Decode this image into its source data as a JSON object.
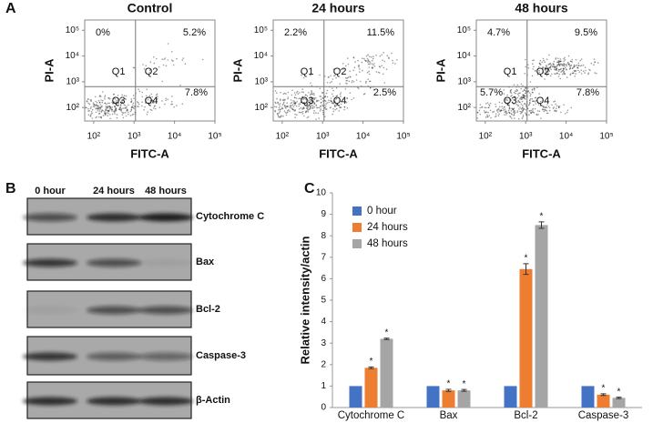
{
  "panel_labels": [
    "A",
    "B",
    "C"
  ],
  "chart_data": [
    {
      "type": "scatter",
      "title": "Control",
      "xlabel": "FITC-A",
      "ylabel": "PI-A",
      "xscale": "log",
      "yscale": "log",
      "xlim": [
        60,
        100000
      ],
      "ylim": [
        30,
        250000
      ],
      "xticks": [
        {
          "value": 100,
          "label": "10²"
        },
        {
          "value": 1000,
          "label": "10³"
        },
        {
          "value": 10000,
          "label": "10⁴"
        },
        {
          "value": 100000,
          "label": "10⁵"
        }
      ],
      "yticks": [
        {
          "value": 100,
          "label": "10²"
        },
        {
          "value": 1000,
          "label": "10³"
        },
        {
          "value": 10000,
          "label": "10⁴"
        },
        {
          "value": 100000,
          "label": "10⁵"
        }
      ],
      "quadrants": [
        "Q1",
        "Q2",
        "Q3",
        "Q4"
      ],
      "values": [
        0,
        5.2,
        null,
        7.8
      ],
      "value_labels": [
        "0%",
        "5.2%",
        null,
        "7.8%"
      ]
    },
    {
      "type": "scatter",
      "title": "24 hours",
      "xlabel": "FITC-A",
      "ylabel": "PI-A",
      "xscale": "log",
      "yscale": "log",
      "xlim": [
        60,
        100000
      ],
      "ylim": [
        30,
        250000
      ],
      "xticks": [
        {
          "value": 100,
          "label": "10²"
        },
        {
          "value": 1000,
          "label": "10³"
        },
        {
          "value": 10000,
          "label": "10⁴"
        },
        {
          "value": 100000,
          "label": "10⁵"
        }
      ],
      "yticks": [
        {
          "value": 100,
          "label": "10²"
        },
        {
          "value": 1000,
          "label": "10³"
        },
        {
          "value": 10000,
          "label": "10⁴"
        },
        {
          "value": 100000,
          "label": "10⁵"
        }
      ],
      "quadrants": [
        "Q1",
        "Q2",
        "Q3",
        "Q4"
      ],
      "values": [
        2.2,
        11.5,
        null,
        2.5
      ],
      "value_labels": [
        "2.2%",
        "11.5%",
        null,
        "2.5%"
      ]
    },
    {
      "type": "scatter",
      "title": "48 hours",
      "xlabel": "FITC-A",
      "ylabel": "PI-A",
      "xscale": "log",
      "yscale": "log",
      "xlim": [
        60,
        100000
      ],
      "ylim": [
        30,
        250000
      ],
      "xticks": [
        {
          "value": 100,
          "label": "10²"
        },
        {
          "value": 1000,
          "label": "10³"
        },
        {
          "value": 10000,
          "label": "10⁴"
        },
        {
          "value": 100000,
          "label": "10⁵"
        }
      ],
      "yticks": [
        {
          "value": 100,
          "label": "10²"
        },
        {
          "value": 1000,
          "label": "10³"
        },
        {
          "value": 10000,
          "label": "10⁴"
        },
        {
          "value": 100000,
          "label": "10⁵"
        }
      ],
      "quadrants": [
        "Q1",
        "Q2",
        "Q3",
        "Q4"
      ],
      "values": [
        4.7,
        9.5,
        5.7,
        7.8
      ],
      "value_labels": [
        "4.7%",
        "9.5%",
        "5.7%",
        "7.8%"
      ]
    },
    {
      "type": "bar",
      "ylabel": "Relative intensity/actin",
      "categories": [
        "Cytochrome C",
        "Bax",
        "Bcl-2",
        "Caspase-3"
      ],
      "ylim": [
        0,
        10
      ],
      "yticks": [
        0,
        1,
        2,
        3,
        4,
        5,
        6,
        7,
        8,
        9,
        10
      ],
      "legend": "top-left",
      "significance_label": "*",
      "series": [
        {
          "name": "0 hour",
          "color": "#4472c4",
          "values": [
            1,
            1,
            1,
            1
          ],
          "significant": [
            false,
            false,
            false,
            false
          ]
        },
        {
          "name": "24 hours",
          "color": "#ed7d31",
          "values": [
            1.85,
            0.8,
            6.45,
            0.6
          ],
          "errors": [
            0.04,
            0.05,
            0.25,
            0.04
          ],
          "significant": [
            true,
            true,
            true,
            true
          ]
        },
        {
          "name": "48 hours",
          "color": "#a5a5a5",
          "values": [
            3.2,
            0.8,
            8.5,
            0.45
          ],
          "errors": [
            0.03,
            0.04,
            0.15,
            0.03
          ],
          "significant": [
            true,
            true,
            true,
            true
          ]
        }
      ]
    }
  ],
  "blot": {
    "columns": [
      "0 hour",
      "24 hours",
      "48 hours"
    ],
    "rows": [
      "Cytochrome C",
      "Bax",
      "Bcl-2",
      "Caspase-3",
      "β-Actin"
    ]
  }
}
